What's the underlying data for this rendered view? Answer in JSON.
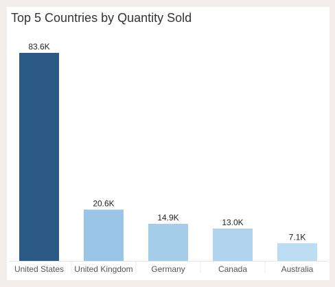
{
  "chart_data": {
    "type": "bar",
    "title": "Top 5 Countries by Quantity Sold",
    "xlabel": "",
    "ylabel": "",
    "categories": [
      "United States",
      "United Kingdom",
      "Germany",
      "Canada",
      "Australia"
    ],
    "values": [
      83600,
      20600,
      14900,
      13000,
      7100
    ],
    "data_labels": [
      "83.6K",
      "20.6K",
      "14.9K",
      "13.0K",
      "7.1K"
    ],
    "bar_colors": [
      "#2b5a85",
      "#9ac5e6",
      "#a5cde9",
      "#b0d4ee",
      "#bcdcf2"
    ],
    "ylim": [
      0,
      83600
    ],
    "grid": false,
    "legend": "none"
  }
}
